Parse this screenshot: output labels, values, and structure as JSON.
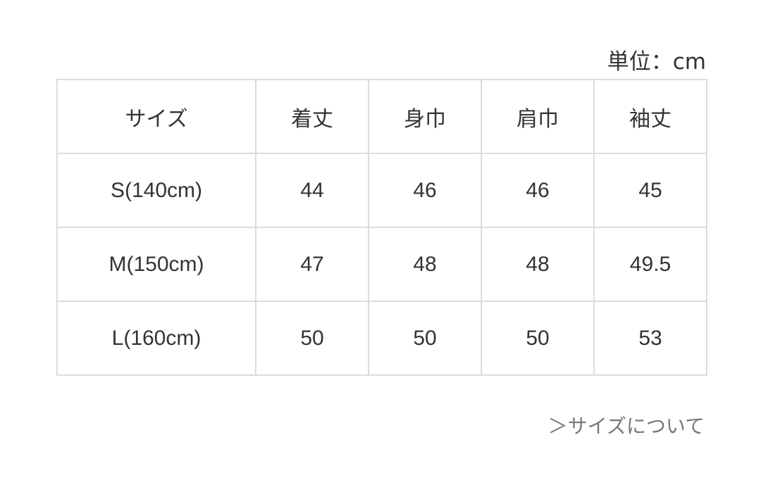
{
  "unit_label": "単位：cm",
  "table": {
    "headers": [
      "サイズ",
      "着丈",
      "身巾",
      "肩巾",
      "袖丈"
    ],
    "rows": [
      [
        "S(140cm)",
        "44",
        "46",
        "46",
        "45"
      ],
      [
        "M(150cm)",
        "47",
        "48",
        "48",
        "49.5"
      ],
      [
        "L(160cm)",
        "50",
        "50",
        "50",
        "53"
      ]
    ]
  },
  "size_link": "＞サイズについて"
}
